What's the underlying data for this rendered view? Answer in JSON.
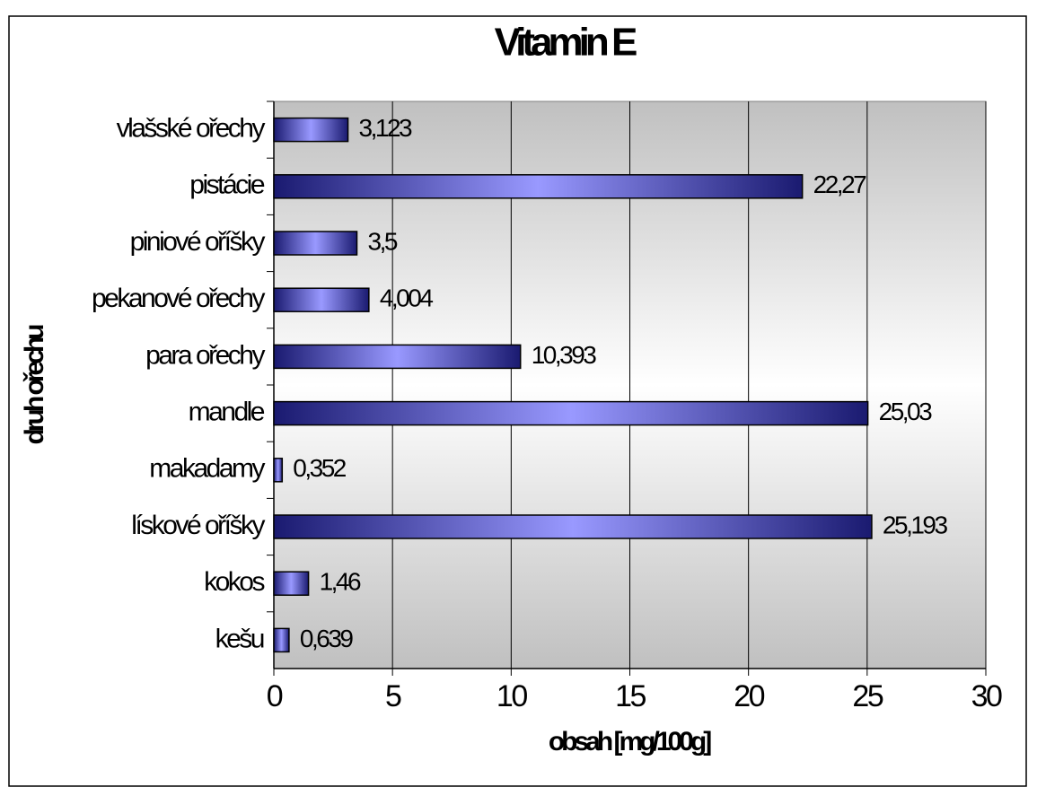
{
  "chart_data": {
    "type": "bar",
    "orientation": "horizontal",
    "title": "Vitamin E",
    "x_label": "obsah [mg/100g]",
    "y_label": "druh ořechu",
    "categories": [
      "vlašské ořechy",
      "pistácie",
      "piniové oříšky",
      "pekanové ořechy",
      "para ořechy",
      "mandle",
      "makadamy",
      "lískové oříšky",
      "kokos",
      "kešu"
    ],
    "values": [
      3.123,
      22.27,
      3.5,
      4.004,
      10.393,
      25.03,
      0.352,
      25.193,
      1.46,
      0.639
    ],
    "value_labels": [
      "3,123",
      "22,27",
      "3,5",
      "4,004",
      "10,393",
      "25,03",
      "0,352",
      "25,193",
      "1,46",
      "0,639"
    ],
    "color": "#9999ff",
    "xlim": [
      0,
      30
    ],
    "xticks": [
      0,
      5,
      10,
      15,
      20,
      25,
      30
    ],
    "grid": true
  }
}
